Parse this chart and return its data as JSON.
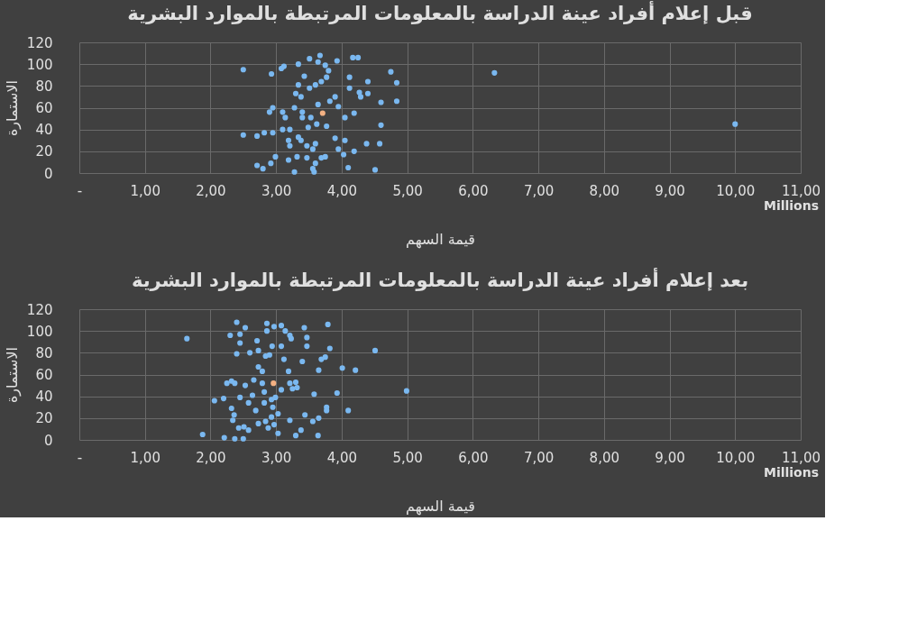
{
  "chart_data": [
    {
      "type": "scatter",
      "title": "قبل إعلام أفراد عينة الدراسة بالمعلومات المرتبطة بالموارد البشرية",
      "xlabel": "قيمة السهم",
      "ylabel": "الاستمارة",
      "annotations": [
        "Millions"
      ],
      "xlim": [
        0,
        11
      ],
      "xticks": [
        {
          "value": 0,
          "label": "-"
        },
        {
          "value": 1,
          "label": "1,00"
        },
        {
          "value": 2,
          "label": "2,00"
        },
        {
          "value": 3,
          "label": "3,00"
        },
        {
          "value": 4,
          "label": "4,00"
        },
        {
          "value": 5,
          "label": "5,00"
        },
        {
          "value": 6,
          "label": "6,00"
        },
        {
          "value": 7,
          "label": "7,00"
        },
        {
          "value": 8,
          "label": "8,00"
        },
        {
          "value": 9,
          "label": "9,00"
        },
        {
          "value": 10,
          "label": "10,00"
        },
        {
          "value": 11,
          "label": "11,00"
        }
      ],
      "ylim": [
        0,
        120
      ],
      "yticks": [
        0,
        20,
        40,
        60,
        80,
        100,
        120
      ],
      "grid": true,
      "marker": "circle",
      "series": [
        {
          "color": "#7ab8f0",
          "x": [
            2.5,
            2.93,
            3.12,
            3.08,
            3.34,
            3.51,
            3.67,
            3.64,
            3.75,
            3.8,
            3.93,
            3.43,
            3.34,
            3.51,
            3.6,
            3.69,
            3.77,
            3.3,
            3.38,
            4.17,
            4.25,
            4.12,
            4.12,
            4.27,
            4.4,
            4.29,
            4.4,
            4.75,
            4.84,
            4.84,
            4.6,
            3.82,
            3.9,
            3.95,
            3.64,
            4.05,
            4.19,
            2.9,
            2.95,
            3.1,
            3.14,
            3.28,
            3.4,
            3.4,
            3.53,
            3.49,
            3.62,
            3.77,
            4.6,
            2.5,
            2.71,
            2.82,
            2.95,
            3.1,
            3.21,
            3.19,
            3.21,
            3.34,
            3.38,
            3.47,
            3.56,
            3.6,
            3.9,
            4.05,
            3.95,
            4.03,
            4.19,
            4.38,
            4.58,
            2.99,
            2.92,
            3.19,
            3.32,
            3.47,
            3.6,
            3.69,
            3.75,
            3.56,
            3.28,
            2.71,
            2.8,
            4.1,
            4.51,
            3.58,
            6.33,
            10.0
          ],
          "values": [
            95,
            91,
            98,
            96,
            100,
            105,
            108,
            102,
            99,
            94,
            103,
            89,
            81,
            78,
            81,
            84,
            88,
            73,
            70,
            106,
            106,
            88,
            78,
            74,
            84,
            70,
            73,
            93,
            83,
            66,
            65,
            66,
            70,
            61,
            63,
            51,
            55,
            56,
            60,
            56,
            51,
            60,
            56,
            51,
            51,
            42,
            45,
            43,
            44,
            35,
            34,
            37,
            37,
            40,
            40,
            30,
            25,
            33,
            30,
            25,
            22,
            27,
            32,
            30,
            22,
            17,
            20,
            27,
            27,
            15,
            9,
            12,
            15,
            14,
            9,
            14,
            15,
            4,
            1,
            7,
            4,
            5,
            3,
            1,
            92,
            45
          ]
        },
        {
          "color": "#f4b183",
          "x": [
            3.71
          ],
          "values": [
            55
          ]
        }
      ]
    },
    {
      "type": "scatter",
      "title": "بعد إعلام أفراد عينة الدراسة بالمعلومات المرتبطة بالموارد البشرية",
      "xlabel": "قيمة السهم",
      "ylabel": "الاستمارة",
      "annotations": [
        "Millions"
      ],
      "xlim": [
        0,
        11
      ],
      "xticks": [
        {
          "value": 0,
          "label": "-"
        },
        {
          "value": 1,
          "label": "1,00"
        },
        {
          "value": 2,
          "label": "2,00"
        },
        {
          "value": 3,
          "label": "3,00"
        },
        {
          "value": 4,
          "label": "4,00"
        },
        {
          "value": 5,
          "label": "5,00"
        },
        {
          "value": 6,
          "label": "6,00"
        },
        {
          "value": 7,
          "label": "7,00"
        },
        {
          "value": 8,
          "label": "8,00"
        },
        {
          "value": 9,
          "label": "9,00"
        },
        {
          "value": 10,
          "label": "10,00"
        },
        {
          "value": 11,
          "label": "11,00"
        }
      ],
      "ylim": [
        0,
        120
      ],
      "yticks": [
        0,
        20,
        40,
        60,
        80,
        100,
        120
      ],
      "grid": true,
      "marker": "circle",
      "series": [
        {
          "color": "#7ab8f0",
          "x": [
            1.64,
            1.88,
            2.06,
            2.2,
            2.25,
            2.32,
            2.3,
            2.4,
            2.53,
            2.45,
            2.45,
            2.4,
            2.37,
            2.53,
            2.32,
            2.36,
            2.34,
            2.45,
            2.58,
            2.64,
            2.69,
            2.43,
            2.51,
            2.58,
            2.21,
            2.37,
            2.5,
            2.71,
            2.6,
            2.73,
            2.66,
            2.73,
            2.79,
            2.84,
            2.9,
            2.86,
            2.86,
            2.97,
            3.08,
            3.14,
            3.21,
            3.23,
            2.94,
            3.08,
            3.12,
            3.19,
            3.43,
            3.47,
            3.47,
            3.79,
            3.82,
            3.4,
            3.69,
            3.75,
            3.65,
            4.01,
            4.21,
            4.51,
            4.99,
            3.93,
            3.58,
            3.77,
            3.77,
            4.1,
            2.79,
            2.82,
            2.82,
            2.93,
            2.95,
            3.03,
            2.99,
            3.08,
            3.21,
            3.3,
            3.25,
            3.32,
            3.21,
            2.93,
            2.84,
            2.73,
            2.88,
            2.97,
            3.03,
            3.3,
            3.38,
            3.44,
            3.56,
            3.65,
            3.64
          ],
          "values": [
            93,
            5,
            36,
            38,
            52,
            54,
            96,
            108,
            103,
            97,
            89,
            79,
            52,
            50,
            29,
            23,
            18,
            39,
            34,
            41,
            27,
            11,
            12,
            9,
            2,
            1,
            1,
            91,
            80,
            82,
            55,
            67,
            63,
            77,
            78,
            107,
            100,
            104,
            105,
            100,
            96,
            93,
            86,
            86,
            74,
            63,
            103,
            94,
            86,
            106,
            84,
            72,
            74,
            76,
            64,
            66,
            64,
            82,
            45,
            43,
            42,
            30,
            27,
            27,
            52,
            44,
            34,
            37,
            30,
            24,
            39,
            46,
            52,
            53,
            47,
            48,
            18,
            21,
            17,
            15,
            11,
            14,
            6,
            4,
            9,
            23,
            17,
            20,
            4
          ]
        },
        {
          "color": "#f4b183",
          "x": [
            2.96
          ],
          "values": [
            52
          ]
        }
      ]
    }
  ]
}
